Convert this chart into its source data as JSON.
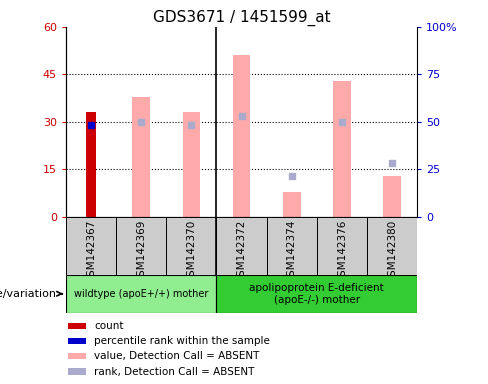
{
  "title": "GDS3671 / 1451599_at",
  "samples": [
    "GSM142367",
    "GSM142369",
    "GSM142370",
    "GSM142372",
    "GSM142374",
    "GSM142376",
    "GSM142380"
  ],
  "count_values": [
    33,
    null,
    null,
    null,
    null,
    null,
    null
  ],
  "count_color": "#cc0000",
  "percentile_values": [
    29,
    null,
    null,
    null,
    null,
    null,
    null
  ],
  "percentile_color": "#0000cc",
  "absent_value_bars": [
    null,
    38,
    33,
    51,
    8,
    43,
    13
  ],
  "absent_value_color": "#ffaaaa",
  "absent_rank_markers": [
    null,
    30,
    29,
    32,
    13,
    30,
    17
  ],
  "absent_rank_color": "#aaaacc",
  "ylim_left": [
    0,
    60
  ],
  "ylim_right": [
    0,
    100
  ],
  "yticks_left": [
    0,
    15,
    30,
    45,
    60
  ],
  "ytick_labels_left": [
    "0",
    "15",
    "30",
    "45",
    "60"
  ],
  "yticks_right": [
    0,
    25,
    50,
    75,
    100
  ],
  "ytick_labels_right": [
    "0",
    "25",
    "50",
    "75",
    "100%"
  ],
  "left_tick_color": "#cc0000",
  "right_tick_color": "#0000cc",
  "group1_label": "wildtype (apoE+/+) mother",
  "group2_label": "apolipoprotein E-deficient\n(apoE-/-) mother",
  "group1_color": "#90ee90",
  "group2_color": "#33cc33",
  "xlabel_factor": "genotype/variation",
  "legend_items": [
    {
      "label": "count",
      "color": "#cc0000"
    },
    {
      "label": "percentile rank within the sample",
      "color": "#0000cc"
    },
    {
      "label": "value, Detection Call = ABSENT",
      "color": "#ffaaaa"
    },
    {
      "label": "rank, Detection Call = ABSENT",
      "color": "#aaaacc"
    }
  ],
  "plot_bg_color": "white",
  "bar_width": 0.35,
  "sample_box_color": "#cccccc",
  "hline_positions": [
    15,
    30,
    45
  ],
  "group1_count": 3,
  "group2_count": 4
}
